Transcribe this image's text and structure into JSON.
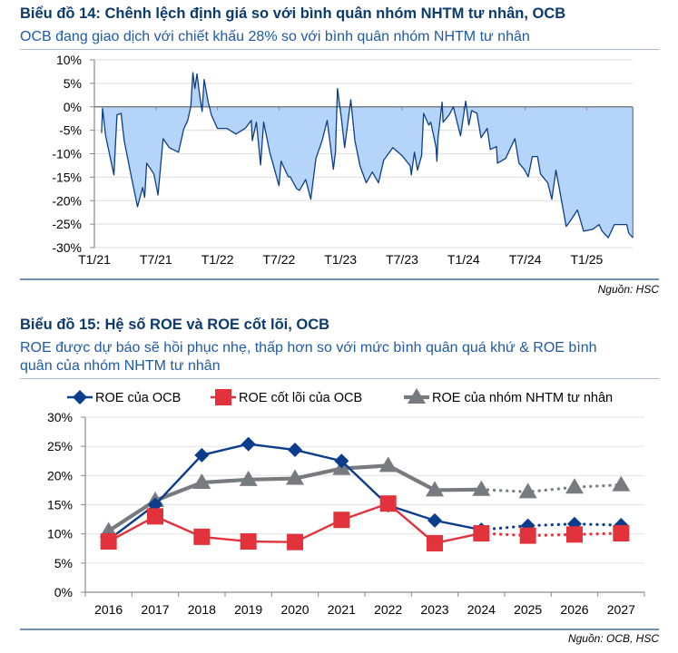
{
  "chart14": {
    "title": "Biểu đồ 14: Chênh lệch định giá so với bình quân nhóm NHTM tư nhân, OCB",
    "subtitle": "OCB đang giao dịch với chiết khấu 28% so với bình quân nhóm NHTM tư nhân",
    "source": "Nguồn: HSC"
  },
  "chart15": {
    "title": "Biểu đồ 15: Hệ số ROE và ROE cốt lõi, OCB",
    "subtitle_line1": "ROE được dự báo sẽ hồi phục nhẹ, thấp hơn so với mức bình quân quá khứ & ROE bình",
    "subtitle_line2": "quân của nhóm NHTM tư nhân",
    "source": "Nguồn: OCB, HSC"
  },
  "colors": {
    "title": "#0b3a6e",
    "subtitle": "#1f5aa6",
    "area_fill": "#b4d4fa",
    "area_line": "#0d3f87",
    "roe_ocb": "#0b3d8c",
    "core_roe": "#e2323b",
    "peer_roe": "#777a7e"
  },
  "chart_data": [
    {
      "type": "area",
      "title": "Biểu đồ 14: Chênh lệch định giá so với bình quân nhóm NHTM tư nhân, OCB",
      "xlabel": "",
      "ylabel": "",
      "x_unit": "months since Jan 2021",
      "xlim": [
        0,
        54
      ],
      "ylim": [
        -30,
        10
      ],
      "yticks": [
        10,
        5,
        0,
        -5,
        -10,
        -15,
        -20,
        -25,
        -30
      ],
      "ytick_labels": [
        "10%",
        "5%",
        "0%",
        "-5%",
        "-10%",
        "-15%",
        "-20%",
        "-25%",
        "-30%"
      ],
      "xticks": [
        0,
        6,
        12,
        18,
        24,
        30,
        36,
        42,
        48
      ],
      "xtick_labels": [
        "T1/21",
        "T7/21",
        "T1/22",
        "T7/22",
        "T1/23",
        "T7/23",
        "T1/24",
        "T7/24",
        "T1/25"
      ],
      "grid": true,
      "points": [
        [
          0.7,
          -5.6
        ],
        [
          0.8,
          -0.4
        ],
        [
          1.1,
          -6.2
        ],
        [
          1.9,
          -14.5
        ],
        [
          2.2,
          -1.7
        ],
        [
          2.6,
          -1.4
        ],
        [
          2.9,
          -7.2
        ],
        [
          3.6,
          -14.9
        ],
        [
          4.2,
          -21.3
        ],
        [
          4.7,
          -17.2
        ],
        [
          4.9,
          -19.3
        ],
        [
          5.1,
          -12.0
        ],
        [
          5.8,
          -14.3
        ],
        [
          6.2,
          -18.8
        ],
        [
          6.7,
          -6.8
        ],
        [
          7.3,
          -8.7
        ],
        [
          8.2,
          -9.7
        ],
        [
          8.7,
          -4.8
        ],
        [
          9.1,
          -2.9
        ],
        [
          9.4,
          0.0
        ],
        [
          9.6,
          7.3
        ],
        [
          9.8,
          3.9
        ],
        [
          10.0,
          7.0
        ],
        [
          10.3,
          1.9
        ],
        [
          10.5,
          -1.0
        ],
        [
          10.7,
          5.8
        ],
        [
          11.1,
          1.0
        ],
        [
          11.4,
          -1.7
        ],
        [
          12.0,
          -4.6
        ],
        [
          12.9,
          -4.6
        ],
        [
          13.8,
          -5.8
        ],
        [
          14.7,
          -4.6
        ],
        [
          15.3,
          -2.9
        ],
        [
          15.4,
          -7.2
        ],
        [
          15.8,
          -3.3
        ],
        [
          16.2,
          -12.4
        ],
        [
          16.5,
          -3.3
        ],
        [
          17.1,
          -9.7
        ],
        [
          18.0,
          -16.8
        ],
        [
          18.2,
          -11.6
        ],
        [
          18.9,
          -14.9
        ],
        [
          19.7,
          -17.4
        ],
        [
          19.1,
          -14.9
        ],
        [
          20.0,
          -17.8
        ],
        [
          20.6,
          -15.5
        ],
        [
          21.1,
          -19.7
        ],
        [
          21.6,
          -11.0
        ],
        [
          22.2,
          -7.2
        ],
        [
          22.7,
          -2.9
        ],
        [
          23.3,
          -13.3
        ],
        [
          23.5,
          -9.7
        ],
        [
          23.7,
          3.9
        ],
        [
          24.1,
          -2.7
        ],
        [
          24.4,
          -8.7
        ],
        [
          25.0,
          1.5
        ],
        [
          25.4,
          -7.2
        ],
        [
          25.9,
          -12.6
        ],
        [
          26.5,
          -16.2
        ],
        [
          27.1,
          -13.9
        ],
        [
          27.7,
          -16.2
        ],
        [
          28.2,
          -11.4
        ],
        [
          29.1,
          -8.7
        ],
        [
          30.0,
          -10.4
        ],
        [
          30.8,
          -12.6
        ],
        [
          30.9,
          -14.5
        ],
        [
          31.2,
          -9.7
        ],
        [
          31.5,
          -13.5
        ],
        [
          31.9,
          -10.4
        ],
        [
          32.1,
          -1.4
        ],
        [
          32.6,
          -3.9
        ],
        [
          32.8,
          -3.3
        ],
        [
          33.3,
          -8.5
        ],
        [
          33.4,
          -11.6
        ],
        [
          33.5,
          -6.6
        ],
        [
          33.9,
          1.0
        ],
        [
          34.0,
          -3.3
        ],
        [
          34.6,
          -1.7
        ],
        [
          35.0,
          0.0
        ],
        [
          35.3,
          -2.7
        ],
        [
          35.7,
          -6.2
        ],
        [
          36.2,
          1.2
        ],
        [
          36.5,
          -3.9
        ],
        [
          36.8,
          -0.8
        ],
        [
          37.3,
          -1.4
        ],
        [
          37.7,
          -6.6
        ],
        [
          38.3,
          -4.6
        ],
        [
          38.6,
          -9.1
        ],
        [
          39.2,
          -8.5
        ],
        [
          39.3,
          -12.0
        ],
        [
          40.1,
          -11.0
        ],
        [
          41.0,
          -6.8
        ],
        [
          41.4,
          -12.0
        ],
        [
          41.9,
          -13.3
        ],
        [
          42.3,
          -14.9
        ],
        [
          42.7,
          -10.6
        ],
        [
          43.2,
          -10.6
        ],
        [
          43.5,
          -14.3
        ],
        [
          44.2,
          -16.2
        ],
        [
          44.6,
          -19.7
        ],
        [
          45.0,
          -13.5
        ],
        [
          45.4,
          -18.2
        ],
        [
          46.0,
          -25.5
        ],
        [
          46.5,
          -24.0
        ],
        [
          47.1,
          -22.0
        ],
        [
          47.7,
          -26.5
        ],
        [
          48.6,
          -26.1
        ],
        [
          49.2,
          -25.1
        ],
        [
          49.5,
          -26.5
        ],
        [
          50.1,
          -27.9
        ],
        [
          50.7,
          -25.1
        ],
        [
          51.2,
          -25.1
        ],
        [
          51.9,
          -25.1
        ],
        [
          52.1,
          -26.9
        ],
        [
          52.5,
          -27.9
        ]
      ]
    },
    {
      "type": "line",
      "title": "Biểu đồ 15: Hệ số ROE và ROE cốt lõi, OCB",
      "xlabel": "",
      "ylabel": "",
      "categories": [
        "2016",
        "2017",
        "2018",
        "2019",
        "2020",
        "2021",
        "2022",
        "2023",
        "2024",
        "2025",
        "2026",
        "2027"
      ],
      "forecast_from_index": 8,
      "ylim": [
        0,
        30
      ],
      "yticks": [
        0,
        5,
        10,
        15,
        20,
        25,
        30
      ],
      "ytick_labels": [
        "0%",
        "5%",
        "10%",
        "15%",
        "20%",
        "25%",
        "30%"
      ],
      "grid": true,
      "legend_position": "top",
      "series": [
        {
          "name": "ROE của OCB",
          "marker": "diamond",
          "values": [
            9.0,
            15.0,
            23.5,
            25.4,
            24.4,
            22.5,
            14.9,
            12.3,
            10.7,
            11.4,
            11.7,
            11.5
          ]
        },
        {
          "name": "ROE cốt lõi của OCB",
          "marker": "square",
          "values": [
            8.7,
            13.0,
            9.5,
            8.7,
            8.6,
            12.4,
            15.2,
            8.4,
            10.1,
            9.7,
            9.9,
            10.1
          ]
        },
        {
          "name": "ROE của nhóm NHTM tư nhân",
          "marker": "triangle",
          "values": [
            10.5,
            15.7,
            18.8,
            19.3,
            19.5,
            21.2,
            21.7,
            17.5,
            17.6,
            17.2,
            18.0,
            18.4
          ]
        }
      ]
    }
  ]
}
